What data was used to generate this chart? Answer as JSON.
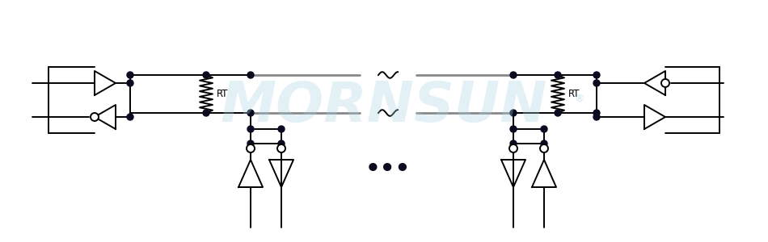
{
  "bg": "#ffffff",
  "lc": "#000000",
  "bc": "#888888",
  "dc": "#0a0a20",
  "wc": "#a8d4e8",
  "lw": 1.4,
  "blw": 2.0,
  "dr": 4.0,
  "ocr": 5.0,
  "wm": "MORNSUN",
  "wa": 0.32
}
